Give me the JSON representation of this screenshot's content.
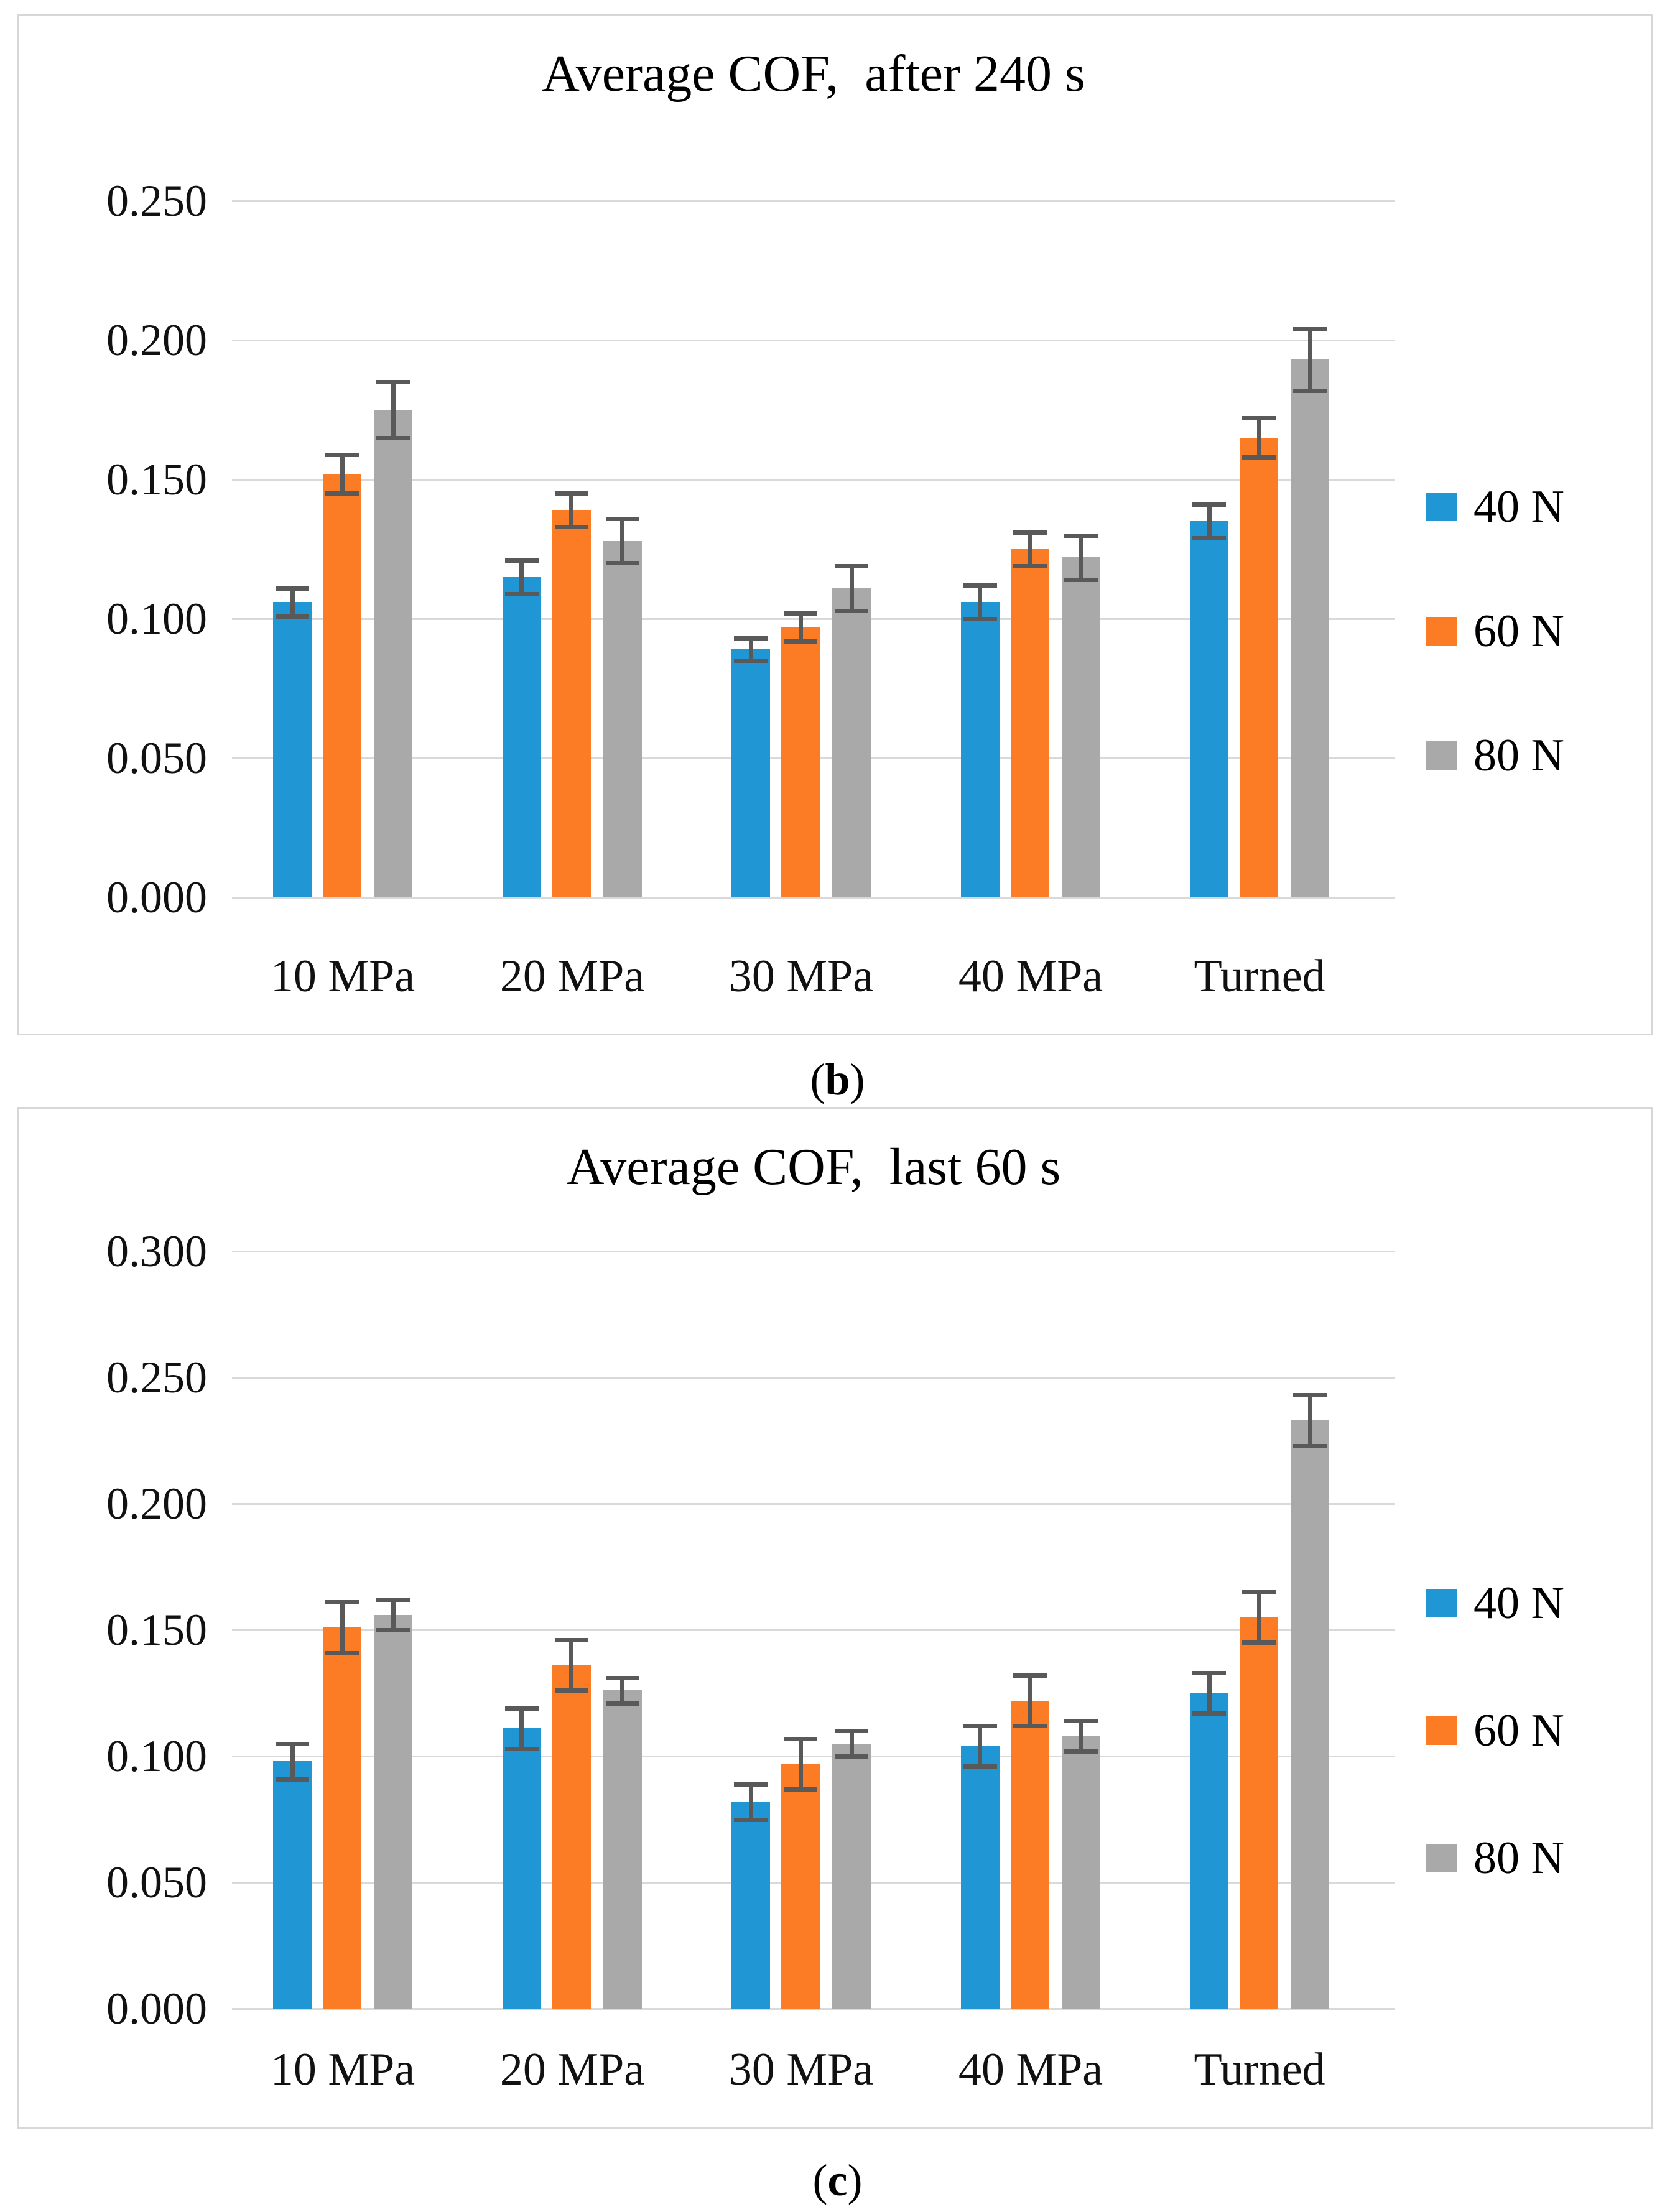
{
  "colors": {
    "series_40N": "#2196D4",
    "series_60N": "#FB7C25",
    "series_80N": "#A9A9A9",
    "error_bar": "#595959",
    "gridline": "#D9D9D9",
    "panel_border": "#D7D7D7",
    "background": "#FFFFFF",
    "text": "#000000"
  },
  "legend": {
    "items": [
      {
        "label": "40 N",
        "color": "#2196D4"
      },
      {
        "label": "60 N",
        "color": "#FB7C25"
      },
      {
        "label": "80 N",
        "color": "#A9A9A9"
      }
    ]
  },
  "captions": {
    "b": {
      "open": "(",
      "letter": "b",
      "close": ")"
    },
    "c": {
      "open": "(",
      "letter": "c",
      "close": ")"
    }
  },
  "chart_data": [
    {
      "type": "bar",
      "id": "b",
      "title": "Average COF,  after 240 s",
      "categories": [
        "10 MPa",
        "20 MPa",
        "30 MPa",
        "40 MPa",
        "Turned"
      ],
      "series": [
        {
          "name": "40 N",
          "color": "#2196D4",
          "values": [
            0.106,
            0.115,
            0.089,
            0.106,
            0.135
          ],
          "errors": [
            0.005,
            0.006,
            0.004,
            0.006,
            0.006
          ]
        },
        {
          "name": "60 N",
          "color": "#FB7C25",
          "values": [
            0.152,
            0.139,
            0.097,
            0.125,
            0.165
          ],
          "errors": [
            0.007,
            0.006,
            0.005,
            0.006,
            0.007
          ]
        },
        {
          "name": "80 N",
          "color": "#A9A9A9",
          "values": [
            0.175,
            0.128,
            0.111,
            0.122,
            0.193
          ],
          "errors": [
            0.01,
            0.008,
            0.008,
            0.008,
            0.011
          ]
        }
      ],
      "xlabel": "",
      "ylabel": "",
      "ylim": [
        0.0,
        0.25
      ],
      "ytick_values": [
        0.0,
        0.05,
        0.1,
        0.15,
        0.2,
        0.25
      ],
      "ytick_labels": [
        "0.000",
        "0.050",
        "0.100",
        "0.150",
        "0.200",
        "0.250"
      ],
      "grid": true,
      "legend_position": "right",
      "error_bars": true
    },
    {
      "type": "bar",
      "id": "c",
      "title": "Average COF,  last 60 s",
      "categories": [
        "10 MPa",
        "20 MPa",
        "30 MPa",
        "40 MPa",
        "Turned"
      ],
      "series": [
        {
          "name": "40 N",
          "color": "#2196D4",
          "values": [
            0.098,
            0.111,
            0.082,
            0.104,
            0.125
          ],
          "errors": [
            0.007,
            0.008,
            0.007,
            0.008,
            0.008
          ]
        },
        {
          "name": "60 N",
          "color": "#FB7C25",
          "values": [
            0.151,
            0.136,
            0.097,
            0.122,
            0.155
          ],
          "errors": [
            0.01,
            0.01,
            0.01,
            0.01,
            0.01
          ]
        },
        {
          "name": "80 N",
          "color": "#A9A9A9",
          "values": [
            0.156,
            0.126,
            0.105,
            0.108,
            0.233
          ],
          "errors": [
            0.006,
            0.005,
            0.005,
            0.006,
            0.01
          ]
        }
      ],
      "xlabel": "",
      "ylabel": "",
      "ylim": [
        0.0,
        0.3
      ],
      "ytick_values": [
        0.0,
        0.05,
        0.1,
        0.15,
        0.2,
        0.25,
        0.3
      ],
      "ytick_labels": [
        "0.000",
        "0.050",
        "0.100",
        "0.150",
        "0.200",
        "0.250",
        "0.300"
      ],
      "grid": true,
      "legend_position": "right",
      "error_bars": true
    }
  ]
}
